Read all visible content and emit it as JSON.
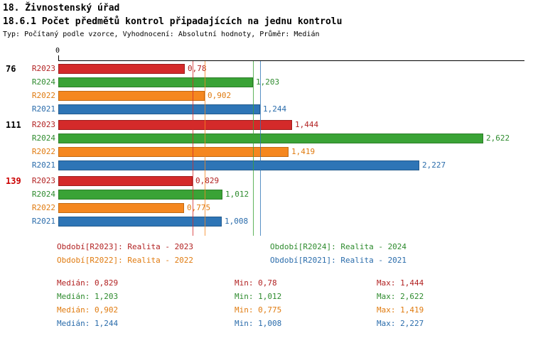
{
  "title": "18. Živnostenský úřad",
  "subtitle": "18.6.1 Počet předmětů kontrol připadajících na jednu kontrolu",
  "meta": "Typ: Počítaný podle vzorce, Vyhodnocení: Absolutní hodnoty, Průměr: Medián",
  "axis": {
    "zero_label": "0"
  },
  "colors": {
    "R2023": {
      "fill": "#d42a2a",
      "border": "#9e1c1c",
      "text": "#b22222"
    },
    "R2024": {
      "fill": "#3aa336",
      "border": "#2b7d28",
      "text": "#2e8b2e"
    },
    "R2022": {
      "fill": "#f5871f",
      "border": "#c26a12",
      "text": "#e07b10"
    },
    "R2021": {
      "fill": "#2e75b6",
      "border": "#225a8d",
      "text": "#2a6cab"
    }
  },
  "chart_data": {
    "type": "bar",
    "orientation": "horizontal",
    "x_axis": {
      "origin_label": "0",
      "min": 0,
      "max_extent": 2.87
    },
    "series_order": [
      "R2023",
      "R2024",
      "R2022",
      "R2021"
    ],
    "groups": [
      {
        "label": "76",
        "label_color": "#000000",
        "bars": [
          {
            "series": "R2023",
            "value": 0.78,
            "value_label": "0,78"
          },
          {
            "series": "R2024",
            "value": 1.203,
            "value_label": "1,203"
          },
          {
            "series": "R2022",
            "value": 0.902,
            "value_label": "0,902"
          },
          {
            "series": "R2021",
            "value": 1.244,
            "value_label": "1,244"
          }
        ]
      },
      {
        "label": "111",
        "label_color": "#000000",
        "bars": [
          {
            "series": "R2023",
            "value": 1.444,
            "value_label": "1,444"
          },
          {
            "series": "R2024",
            "value": 2.622,
            "value_label": "2,622"
          },
          {
            "series": "R2022",
            "value": 1.419,
            "value_label": "1,419"
          },
          {
            "series": "R2021",
            "value": 2.227,
            "value_label": "2,227"
          }
        ]
      },
      {
        "label": "139",
        "label_color": "#cc0000",
        "bars": [
          {
            "series": "R2023",
            "value": 0.829,
            "value_label": "0,829"
          },
          {
            "series": "R2024",
            "value": 1.012,
            "value_label": "1,012"
          },
          {
            "series": "R2022",
            "value": 0.775,
            "value_label": "0,775"
          },
          {
            "series": "R2021",
            "value": 1.008,
            "value_label": "1,008"
          }
        ]
      }
    ],
    "median_lines": {
      "R2023": 0.829,
      "R2024": 1.203,
      "R2022": 0.902,
      "R2021": 1.244
    }
  },
  "legend": [
    {
      "series": "R2023",
      "text": "Období[R2023]: Realita - 2023"
    },
    {
      "series": "R2024",
      "text": "Období[R2024]: Realita - 2024"
    },
    {
      "series": "R2022",
      "text": "Období[R2022]: Realita - 2022"
    },
    {
      "series": "R2021",
      "text": "Období[R2021]: Realita - 2021"
    }
  ],
  "stats": [
    {
      "series": "R2023",
      "median": "Medián: 0,829",
      "min": "Min: 0,78",
      "max": "Max: 1,444"
    },
    {
      "series": "R2024",
      "median": "Medián: 1,203",
      "min": "Min: 1,012",
      "max": "Max: 2,622"
    },
    {
      "series": "R2022",
      "median": "Medián: 0,902",
      "min": "Min: 0,775",
      "max": "Max: 1,419"
    },
    {
      "series": "R2021",
      "median": "Medián: 1,244",
      "min": "Min: 1,008",
      "max": "Max: 2,227"
    }
  ]
}
